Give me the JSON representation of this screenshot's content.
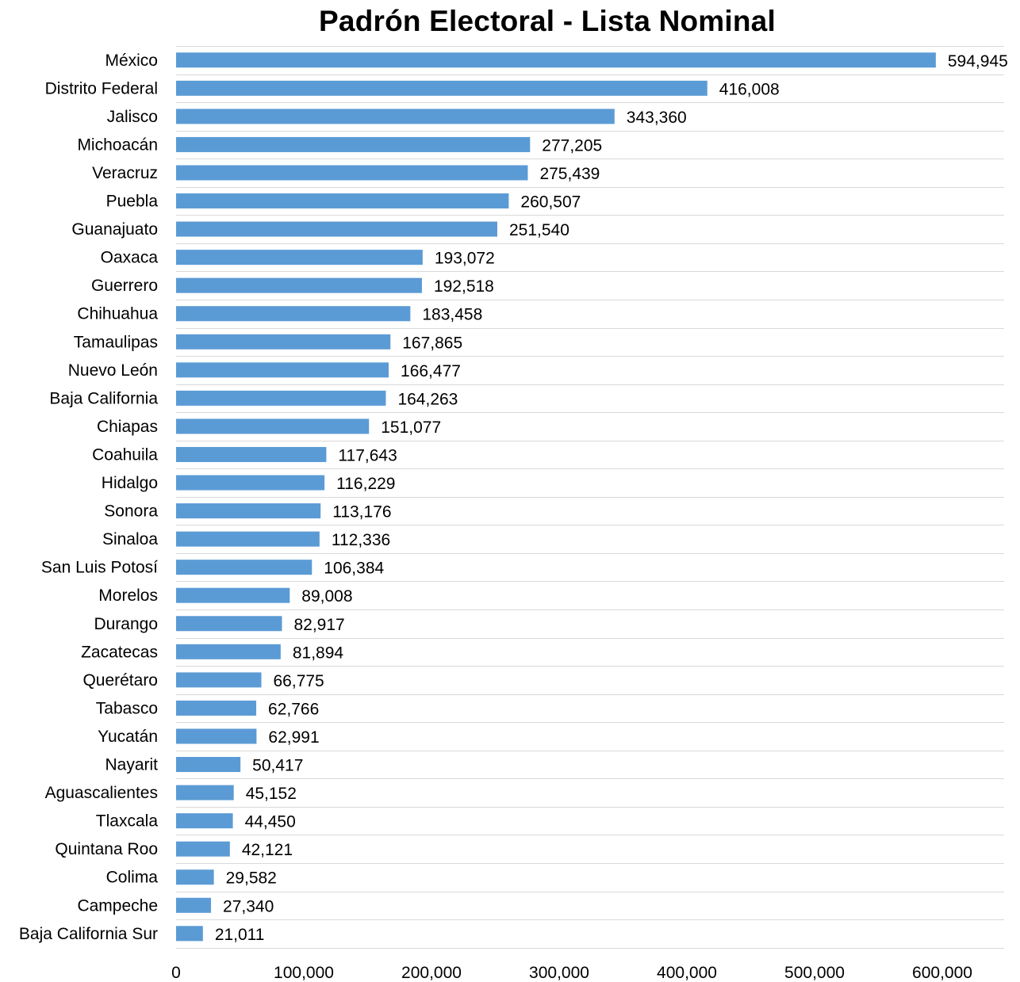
{
  "chart_data": {
    "type": "bar",
    "orientation": "horizontal",
    "title": "Padrón Electoral - Lista Nominal",
    "xlabel": "",
    "ylabel": "",
    "xlim": [
      0,
      650000
    ],
    "x_ticks": [
      0,
      100000,
      200000,
      300000,
      400000,
      500000,
      600000
    ],
    "x_tick_labels": [
      "0",
      "100,000",
      "200,000",
      "300,000",
      "400,000",
      "500,000",
      "600,000"
    ],
    "grid": "horizontal row separators",
    "legend": "none",
    "bar_color": "#5b9bd5",
    "categories": [
      "México",
      "Distrito Federal",
      "Jalisco",
      "Michoacán",
      "Veracruz",
      "Puebla",
      "Guanajuato",
      "Oaxaca",
      "Guerrero",
      "Chihuahua",
      "Tamaulipas",
      "Nuevo León",
      "Baja California",
      "Chiapas",
      "Coahuila",
      "Hidalgo",
      "Sonora",
      "Sinaloa",
      "San Luis Potosí",
      "Morelos",
      "Durango",
      "Zacatecas",
      "Querétaro",
      "Tabasco",
      "Yucatán",
      "Nayarit",
      "Aguascalientes",
      "Tlaxcala",
      "Quintana Roo",
      "Colima",
      "Campeche",
      "Baja California Sur"
    ],
    "values": [
      594945,
      416008,
      343360,
      277205,
      275439,
      260507,
      251540,
      193072,
      192518,
      183458,
      167865,
      166477,
      164263,
      151077,
      117643,
      116229,
      113176,
      112336,
      106384,
      89008,
      82917,
      81894,
      66775,
      62766,
      62991,
      50417,
      45152,
      44450,
      42121,
      29582,
      27340,
      21011
    ],
    "value_labels": [
      "594,945",
      "416,008",
      "343,360",
      "277,205",
      "275,439",
      "260,507",
      "251,540",
      "193,072",
      "192,518",
      "183,458",
      "167,865",
      "166,477",
      "164,263",
      "151,077",
      "117,643",
      "116,229",
      "113,176",
      "112,336",
      "106,384",
      "89,008",
      "82,917",
      "81,894",
      "66,775",
      "62,766",
      "62,991",
      "50,417",
      "45,152",
      "44,450",
      "42,121",
      "29,582",
      "27,340",
      "21,011"
    ]
  }
}
